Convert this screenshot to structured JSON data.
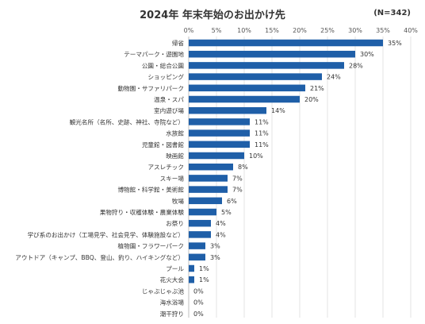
{
  "chart_data": {
    "type": "bar",
    "orientation": "horizontal",
    "title": "2024年 年末年始のお出かけ先",
    "sample_size": "(N=342)",
    "value_suffix": "%",
    "xlim": [
      0,
      40
    ],
    "x_ticks": [
      "0%",
      "5%",
      "10%",
      "15%",
      "20%",
      "25%",
      "30%",
      "35%",
      "40%"
    ],
    "grid": true,
    "bar_color": "#1f5fa8",
    "categories": [
      "帰省",
      "テーマパーク・遊園地",
      "公園・総合公園",
      "ショッピング",
      "動物園・サファリパーク",
      "温泉・スパ",
      "室内遊び場",
      "観光名所（名所、史跡、神社、寺院など）",
      "水族館",
      "児童館・図書館",
      "映画館",
      "アスレチック",
      "スキー場",
      "博物館・科学館・美術館",
      "牧場",
      "果物狩り・収穫体験・農業体験",
      "お祭り",
      "学び系のお出かけ（工場見学、社会見学、体験施設など）",
      "植物園・フラワーパーク",
      "アウトドア（キャンプ、BBQ、登山、釣り、ハイキングなど）",
      "プール",
      "花火大会",
      "じゃぶじゃぶ池",
      "海水浴場",
      "潮干狩り"
    ],
    "values": [
      35,
      30,
      28,
      24,
      21,
      20,
      14,
      11,
      11,
      11,
      10,
      8,
      7,
      7,
      6,
      5,
      4,
      4,
      3,
      3,
      1,
      1,
      0,
      0,
      0
    ]
  }
}
